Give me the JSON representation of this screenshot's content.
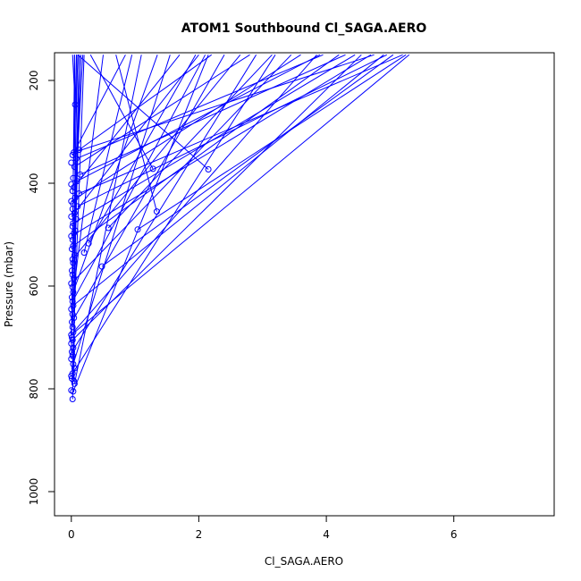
{
  "chart_data": {
    "type": "scatter",
    "title": "ATOM1 Southbound Cl_SAGA.AERO",
    "xlabel": "Cl_SAGA.AERO",
    "ylabel": "Pressure (mbar)",
    "xlim": [
      -0.3,
      7.5
    ],
    "ylim": [
      1040,
      150
    ],
    "y_reversed": true,
    "x_ticks": [
      "0",
      "2",
      "4",
      "6"
    ],
    "y_ticks": [
      "200",
      "400",
      "600",
      "800",
      "1000"
    ],
    "grid": false,
    "legend": "none",
    "color": "#0000ff",
    "marker": "open-circle",
    "points": [
      [
        0.02,
        820
      ],
      [
        0.03,
        805
      ],
      [
        0.0,
        803
      ],
      [
        0.05,
        790
      ],
      [
        0.04,
        785
      ],
      [
        0.01,
        780
      ],
      [
        0.0,
        775
      ],
      [
        0.02,
        770
      ],
      [
        0.05,
        760
      ],
      [
        0.03,
        752
      ],
      [
        0.0,
        742
      ],
      [
        0.02,
        735
      ],
      [
        0.01,
        728
      ],
      [
        0.03,
        720
      ],
      [
        0.0,
        712
      ],
      [
        0.02,
        705
      ],
      [
        0.01,
        700
      ],
      [
        0.0,
        695
      ],
      [
        0.03,
        690
      ],
      [
        0.02,
        680
      ],
      [
        0.01,
        670
      ],
      [
        0.04,
        662
      ],
      [
        0.02,
        655
      ],
      [
        0.0,
        645
      ],
      [
        0.03,
        638
      ],
      [
        0.02,
        630
      ],
      [
        0.01,
        622
      ],
      [
        0.03,
        612
      ],
      [
        0.02,
        602
      ],
      [
        0.0,
        595
      ],
      [
        0.04,
        585
      ],
      [
        0.02,
        578
      ],
      [
        0.01,
        570
      ],
      [
        0.48,
        562
      ],
      [
        0.03,
        555
      ],
      [
        0.02,
        548
      ],
      [
        0.05,
        540
      ],
      [
        0.2,
        535
      ],
      [
        0.01,
        528
      ],
      [
        0.03,
        522
      ],
      [
        0.27,
        517
      ],
      [
        0.02,
        510
      ],
      [
        0.0,
        503
      ],
      [
        0.04,
        497
      ],
      [
        0.06,
        492
      ],
      [
        1.04,
        490
      ],
      [
        0.58,
        487
      ],
      [
        0.02,
        484
      ],
      [
        0.03,
        478
      ],
      [
        0.08,
        470
      ],
      [
        0.0,
        465
      ],
      [
        0.05,
        458
      ],
      [
        1.34,
        455
      ],
      [
        0.02,
        450
      ],
      [
        0.1,
        445
      ],
      [
        0.03,
        440
      ],
      [
        0.0,
        435
      ],
      [
        0.06,
        428
      ],
      [
        0.12,
        420
      ],
      [
        0.02,
        415
      ],
      [
        0.04,
        408
      ],
      [
        0.0,
        402
      ],
      [
        0.09,
        396
      ],
      [
        0.03,
        390
      ],
      [
        0.14,
        383
      ],
      [
        2.15,
        373
      ],
      [
        1.28,
        372
      ],
      [
        0.05,
        368
      ],
      [
        0.0,
        360
      ],
      [
        0.08,
        352
      ],
      [
        0.02,
        345
      ],
      [
        0.04,
        340
      ],
      [
        0.12,
        335
      ],
      [
        0.06,
        247
      ]
    ],
    "segments": [
      [
        0.02,
        820,
        0.12,
        150
      ],
      [
        0.03,
        805,
        2.15,
        150
      ],
      [
        0.05,
        790,
        1.1,
        150
      ],
      [
        0.04,
        785,
        0.08,
        150
      ],
      [
        0.01,
        780,
        0.2,
        150
      ],
      [
        0.02,
        770,
        3.2,
        150
      ],
      [
        0.03,
        752,
        1.55,
        150
      ],
      [
        0.0,
        742,
        0.05,
        150
      ],
      [
        0.01,
        728,
        2.9,
        150
      ],
      [
        0.02,
        705,
        4.55,
        150
      ],
      [
        0.0,
        695,
        5.3,
        150
      ],
      [
        0.03,
        690,
        3.85,
        150
      ],
      [
        0.01,
        670,
        2.4,
        150
      ],
      [
        0.0,
        645,
        0.5,
        150
      ],
      [
        0.03,
        638,
        4.9,
        150
      ],
      [
        0.02,
        630,
        2.1,
        150
      ],
      [
        0.03,
        612,
        1.35,
        150
      ],
      [
        0.0,
        595,
        3.45,
        150
      ],
      [
        0.02,
        578,
        0.15,
        150
      ],
      [
        0.48,
        562,
        5.05,
        150
      ],
      [
        0.02,
        548,
        2.65,
        150
      ],
      [
        0.2,
        535,
        0.95,
        150
      ],
      [
        0.03,
        522,
        4.2,
        150
      ],
      [
        0.27,
        517,
        1.95,
        150
      ],
      [
        0.0,
        503,
        4.7,
        150
      ],
      [
        1.04,
        490,
        5.25,
        150
      ],
      [
        0.58,
        487,
        3.15,
        150
      ],
      [
        0.06,
        492,
        0.05,
        150
      ],
      [
        0.03,
        478,
        4.45,
        150
      ],
      [
        0.0,
        465,
        2.0,
        150
      ],
      [
        1.34,
        455,
        0.7,
        150
      ],
      [
        0.1,
        445,
        4.95,
        150
      ],
      [
        0.0,
        435,
        3.6,
        150
      ],
      [
        0.12,
        420,
        5.2,
        150
      ],
      [
        0.04,
        408,
        1.7,
        150
      ],
      [
        0.09,
        396,
        3.9,
        150
      ],
      [
        0.14,
        383,
        4.3,
        150
      ],
      [
        2.15,
        373,
        0.1,
        150
      ],
      [
        1.28,
        372,
        0.3,
        150
      ],
      [
        0.05,
        368,
        2.8,
        150
      ],
      [
        0.08,
        352,
        3.95,
        150
      ],
      [
        0.02,
        345,
        0.85,
        150
      ],
      [
        0.04,
        340,
        4.75,
        150
      ],
      [
        0.12,
        335,
        2.2,
        150
      ],
      [
        0.06,
        247,
        0.02,
        150
      ],
      [
        0.0,
        712,
        0.1,
        150
      ],
      [
        0.02,
        680,
        0.15,
        150
      ],
      [
        0.04,
        585,
        0.12,
        150
      ],
      [
        0.05,
        458,
        0.18,
        150
      ],
      [
        0.03,
        390,
        0.08,
        150
      ]
    ]
  }
}
